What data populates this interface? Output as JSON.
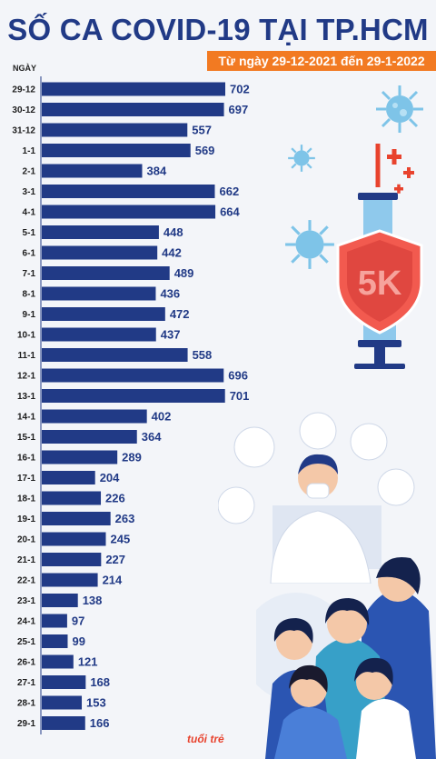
{
  "header": {
    "title": "SỐ CA COVID-19 TẠI TP.HCM",
    "subtitle": "Từ ngày 29-12-2021 đến 29-1-2022"
  },
  "colors": {
    "title": "#213a86",
    "bar": "#213a86",
    "accent": "#f27a22",
    "background": "#f3f5f9"
  },
  "icons": [
    "virus-icon",
    "syringe-icon",
    "shield-5k-icon",
    "doctor-illustration",
    "people-illustration"
  ],
  "watermark": "tuổi trẻ",
  "chart_data": {
    "type": "bar",
    "orientation": "horizontal",
    "title": "SỐ CA COVID-19 TẠI TP.HCM",
    "subtitle": "Từ ngày 29-12-2021 đến 29-1-2022",
    "ylabel": "NGÀY",
    "xlabel": "",
    "grid": false,
    "xlim": [
      0,
      702
    ],
    "categories": [
      "29-12",
      "30-12",
      "31-12",
      "1-1",
      "2-1",
      "3-1",
      "4-1",
      "5-1",
      "6-1",
      "7-1",
      "8-1",
      "9-1",
      "10-1",
      "11-1",
      "12-1",
      "13-1",
      "14-1",
      "15-1",
      "16-1",
      "17-1",
      "18-1",
      "19-1",
      "20-1",
      "21-1",
      "22-1",
      "23-1",
      "24-1",
      "25-1",
      "26-1",
      "27-1",
      "28-1",
      "29-1"
    ],
    "values": [
      702,
      697,
      557,
      569,
      384,
      662,
      664,
      448,
      442,
      489,
      436,
      472,
      437,
      558,
      696,
      701,
      402,
      364,
      289,
      204,
      226,
      263,
      245,
      227,
      214,
      138,
      97,
      99,
      121,
      168,
      153,
      166
    ]
  }
}
